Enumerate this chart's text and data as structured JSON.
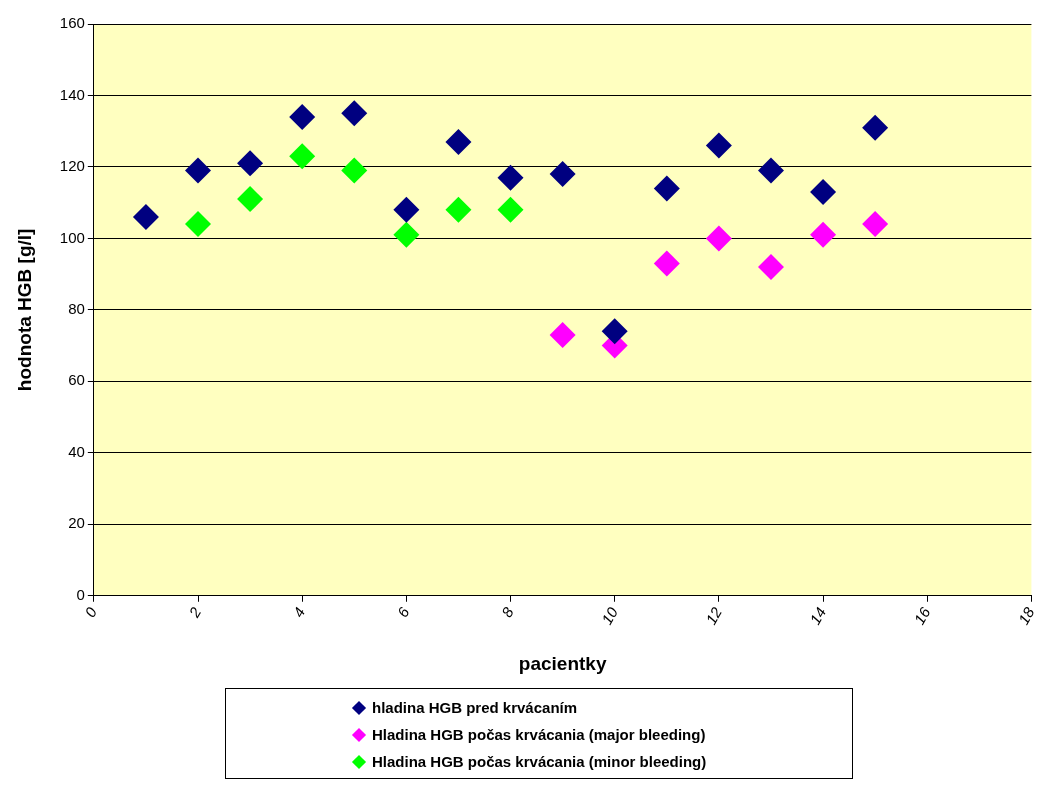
{
  "chart_data": {
    "type": "scatter",
    "xlabel": "pacientky",
    "ylabel": "hodnota HGB [g/l]",
    "xlim": [
      0,
      18
    ],
    "xticks": [
      0,
      2,
      4,
      6,
      8,
      10,
      12,
      14,
      16,
      18
    ],
    "ylim": [
      0,
      160
    ],
    "yticks": [
      0,
      20,
      40,
      60,
      80,
      100,
      120,
      140,
      160
    ],
    "grid": "y",
    "legend": "bottom",
    "marker": "diamond",
    "series": [
      {
        "name": "hladina HGB pred krvácaním",
        "color": "#000080",
        "x": [
          1,
          2,
          3,
          4,
          5,
          6,
          7,
          8,
          9,
          10,
          11,
          12,
          13,
          14,
          15
        ],
        "values": [
          106,
          119,
          121,
          134,
          135,
          108,
          127,
          117,
          118,
          74,
          114,
          126,
          119,
          113,
          131
        ]
      },
      {
        "name": "Hladina HGB počas krvácania (major bleeding)",
        "color": "#ff00ff",
        "x": [
          9,
          10,
          11,
          12,
          13,
          14,
          15
        ],
        "values": [
          73,
          70,
          93,
          100,
          92,
          101,
          104
        ]
      },
      {
        "name": "Hladina HGB počas krvácania (minor bleeding)",
        "color": "#00ff00",
        "x": [
          2,
          3,
          4,
          5,
          6,
          7,
          8
        ],
        "values": [
          104,
          111,
          123,
          119,
          101,
          108,
          108
        ]
      }
    ]
  }
}
